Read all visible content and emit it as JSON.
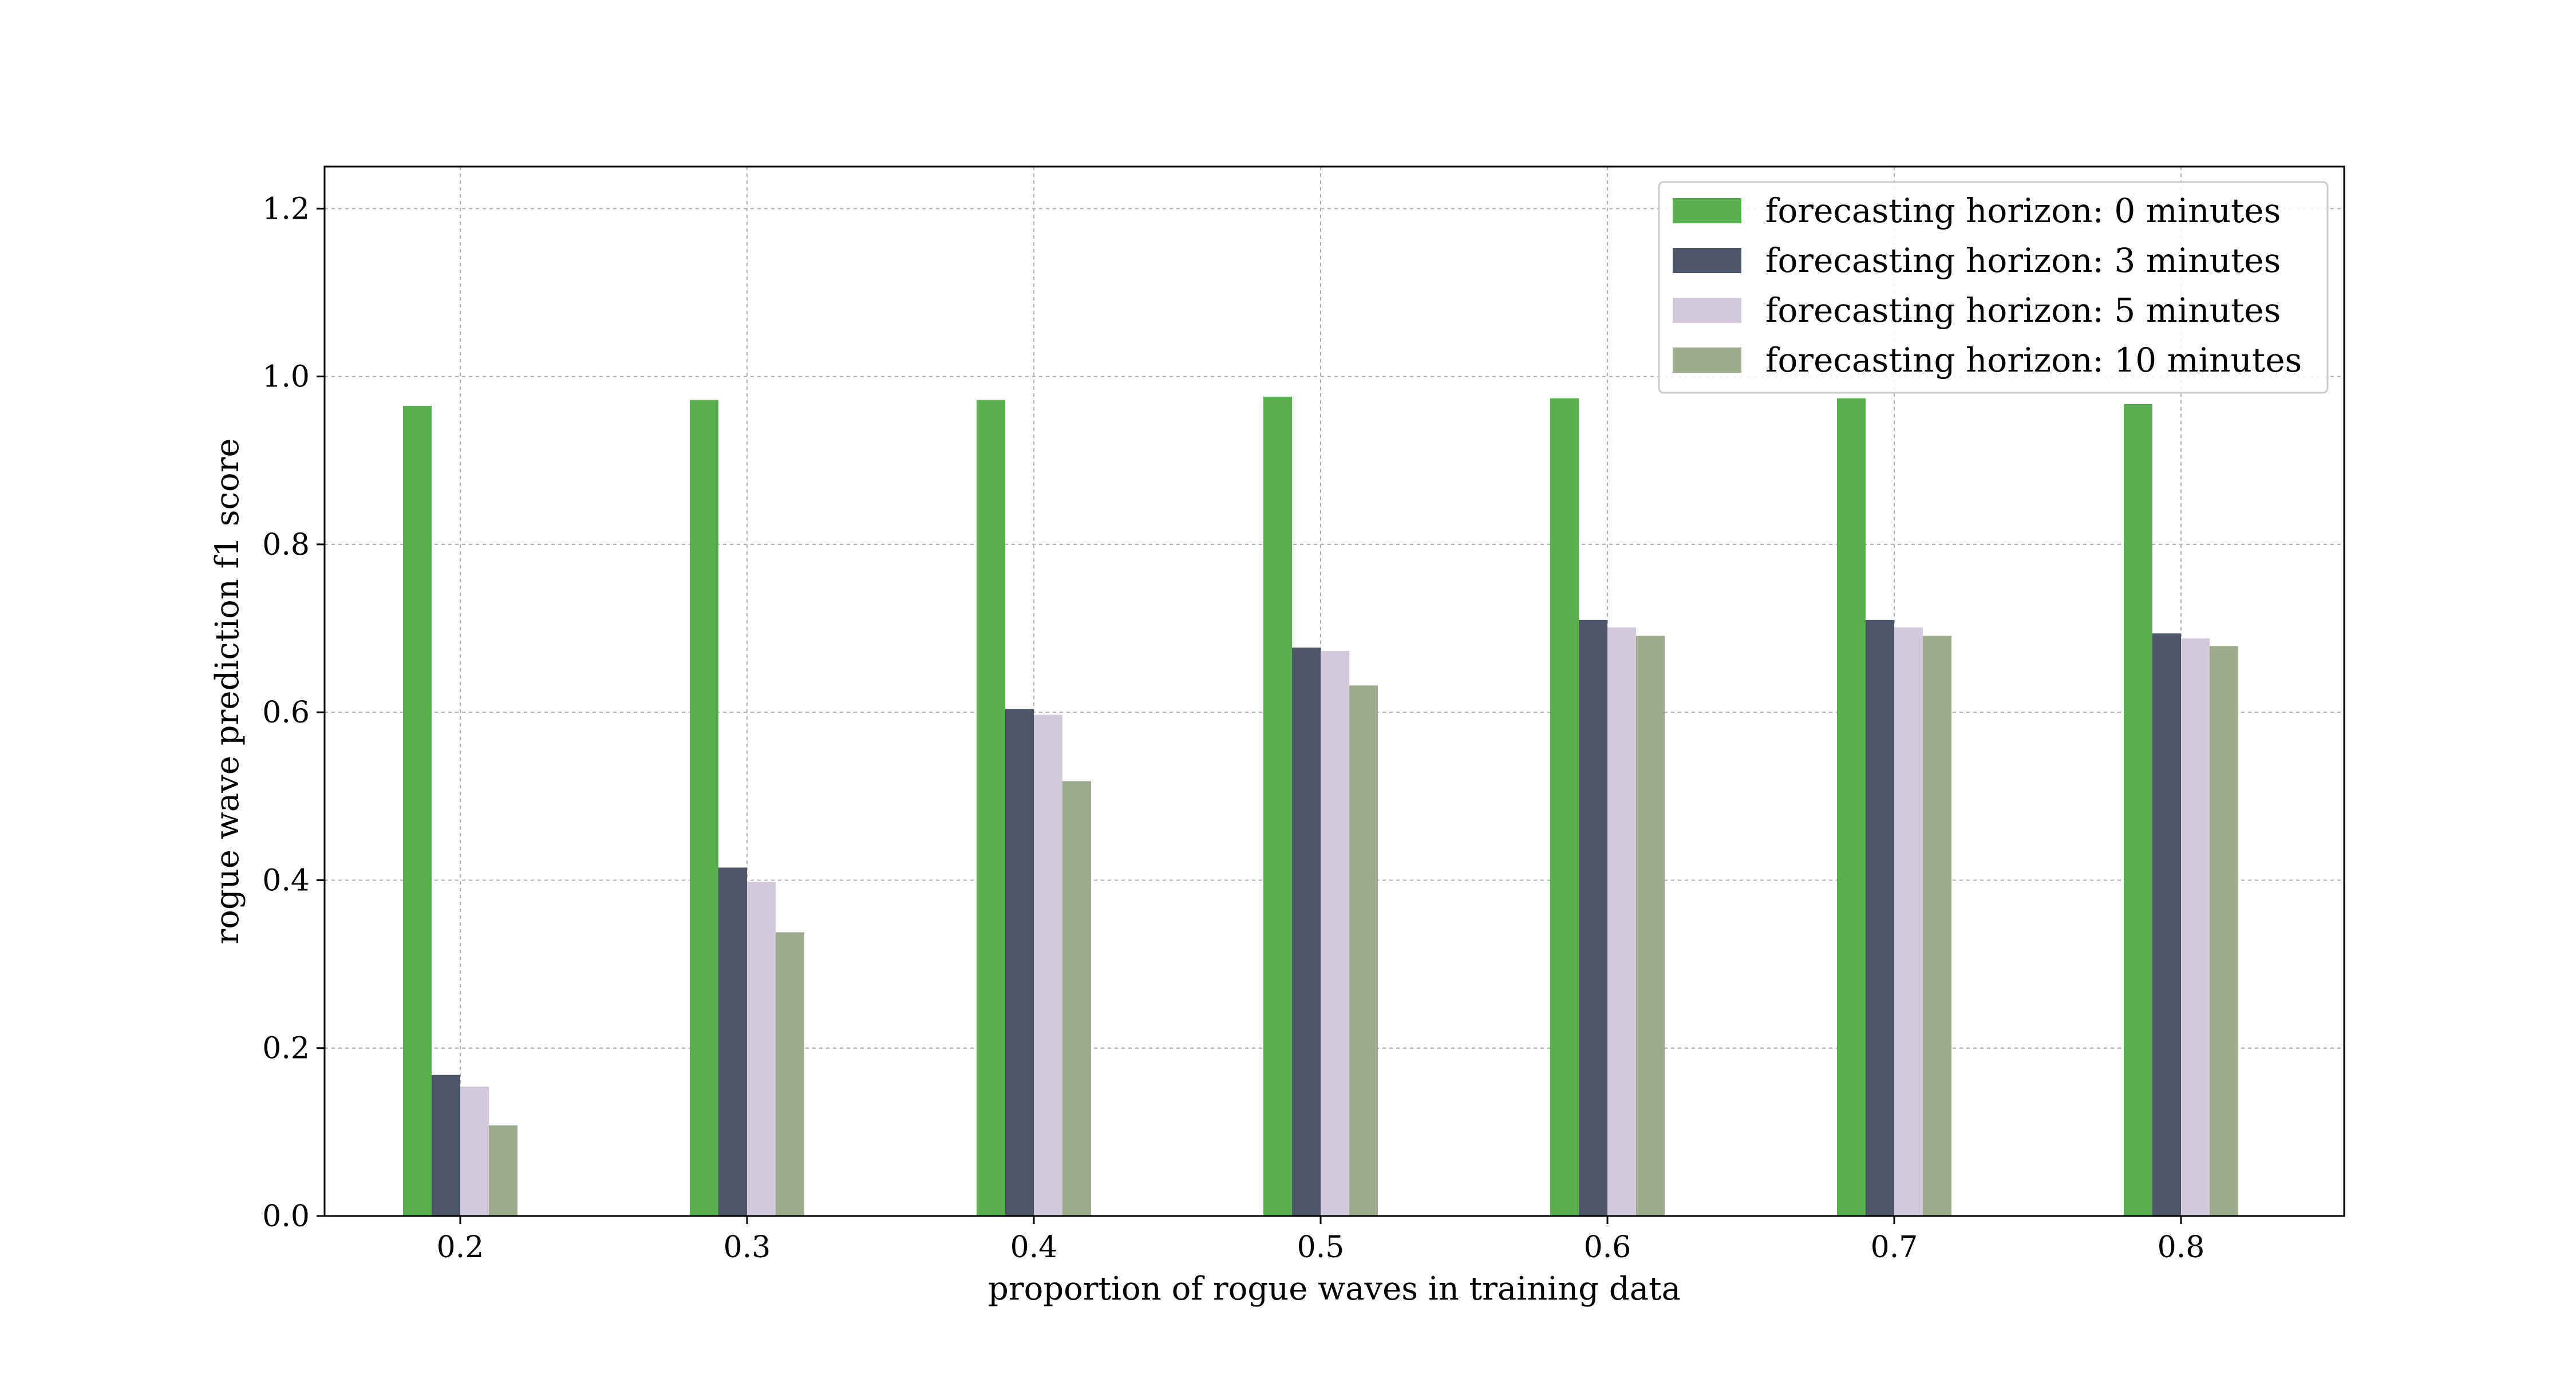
{
  "chart_data": {
    "type": "bar",
    "title": "",
    "xlabel": "proportion of rogue waves in training data",
    "ylabel": "rogue wave prediction f1 score",
    "categories": [
      "0.2",
      "0.3",
      "0.4",
      "0.5",
      "0.6",
      "0.7",
      "0.8"
    ],
    "ylim": [
      0,
      1.25
    ],
    "yticks": [
      "0.0",
      "0.2",
      "0.4",
      "0.6",
      "0.8",
      "1.0",
      "1.2"
    ],
    "grid": true,
    "legend_position": "top-right",
    "series": [
      {
        "name": "forecasting horizon: 0 minutes",
        "color": "#57b04d",
        "values": [
          0.965,
          0.972,
          0.972,
          0.976,
          0.974,
          0.974,
          0.967
        ]
      },
      {
        "name": "forecasting horizon: 3 minutes",
        "color": "#4c5666",
        "values": [
          0.168,
          0.415,
          0.604,
          0.677,
          0.71,
          0.71,
          0.694
        ]
      },
      {
        "name": "forecasting horizon: 5 minutes",
        "color": "#d2c9dc",
        "values": [
          0.154,
          0.398,
          0.597,
          0.673,
          0.701,
          0.701,
          0.688
        ]
      },
      {
        "name": "forecasting horizon: 10 minutes",
        "color": "#9eab8e",
        "values": [
          0.108,
          0.338,
          0.518,
          0.632,
          0.691,
          0.691,
          0.679
        ]
      }
    ]
  }
}
